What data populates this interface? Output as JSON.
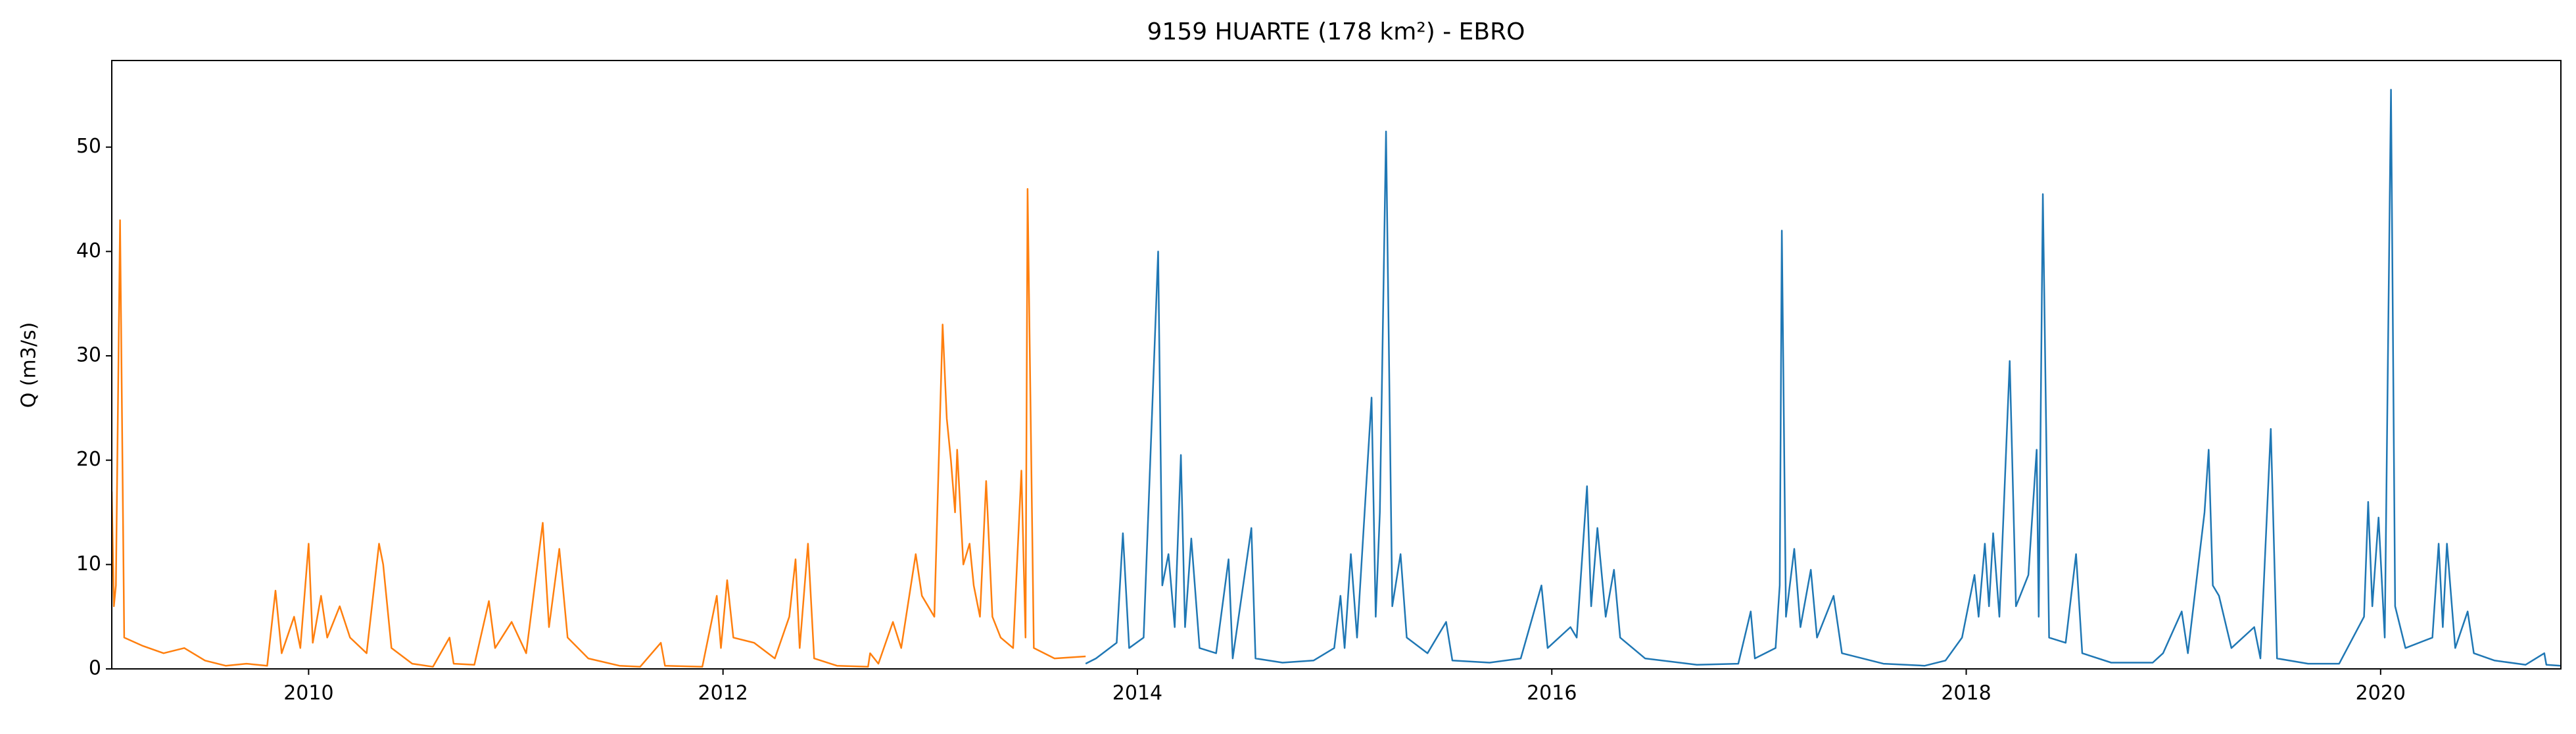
{
  "chart_data": {
    "type": "line",
    "title": "9159 HUARTE (178 km²) - EBRO",
    "ylabel": "Q (m3/s)",
    "xlim": [
      2009.05,
      2020.87
    ],
    "xticks": [
      2010,
      2012,
      2014,
      2016,
      2018,
      2020
    ],
    "ylim": [
      0,
      58.3
    ],
    "yticks": [
      0,
      10,
      20,
      30,
      40,
      50
    ],
    "grid": false,
    "series": [
      {
        "color": "#ff7f0e",
        "x": [
          2009.05,
          2009.06,
          2009.07,
          2009.09,
          2009.11,
          2009.2,
          2009.3,
          2009.4,
          2009.5,
          2009.6,
          2009.7,
          2009.8,
          2009.84,
          2009.87,
          2009.93,
          2009.96,
          2010.0,
          2010.02,
          2010.06,
          2010.09,
          2010.15,
          2010.2,
          2010.28,
          2010.34,
          2010.36,
          2010.4,
          2010.5,
          2010.6,
          2010.68,
          2010.7,
          2010.8,
          2010.87,
          2010.9,
          2010.98,
          2011.05,
          2011.13,
          2011.16,
          2011.21,
          2011.25,
          2011.35,
          2011.5,
          2011.6,
          2011.7,
          2011.72,
          2011.9,
          2011.97,
          2011.99,
          2012.02,
          2012.05,
          2012.15,
          2012.25,
          2012.32,
          2012.35,
          2012.37,
          2012.41,
          2012.44,
          2012.55,
          2012.7,
          2012.71,
          2012.75,
          2012.82,
          2012.86,
          2012.93,
          2012.96,
          2013.02,
          2013.06,
          2013.08,
          2013.1,
          2013.12,
          2013.13,
          2013.16,
          2013.19,
          2013.21,
          2013.24,
          2013.27,
          2013.3,
          2013.34,
          2013.4,
          2013.44,
          2013.46,
          2013.47,
          2013.5,
          2013.6,
          2013.75
        ],
        "values": [
          17,
          6,
          8,
          43,
          3,
          2.2,
          1.5,
          2,
          0.8,
          0.3,
          0.5,
          0.3,
          7.5,
          1.5,
          5,
          2,
          12,
          2.5,
          7,
          3,
          6,
          3,
          1.5,
          12,
          10,
          2,
          0.5,
          0.2,
          3,
          0.5,
          0.4,
          6.5,
          2,
          4.5,
          1.5,
          14,
          4,
          11.5,
          3,
          1,
          0.3,
          0.2,
          2.5,
          0.3,
          0.2,
          7,
          2,
          8.5,
          3,
          2.5,
          1,
          5,
          10.5,
          2,
          12,
          1,
          0.3,
          0.2,
          1.5,
          0.5,
          4.5,
          2,
          11,
          7,
          5,
          33,
          24,
          20,
          15,
          21,
          10,
          12,
          8,
          5,
          18,
          5,
          3,
          2,
          19,
          3,
          46,
          2,
          1,
          1.2
        ]
      },
      {
        "color": "#1f77b4",
        "x": [
          2013.75,
          2013.8,
          2013.9,
          2013.93,
          2013.96,
          2014.03,
          2014.1,
          2014.12,
          2014.15,
          2014.18,
          2014.21,
          2014.23,
          2014.26,
          2014.3,
          2014.38,
          2014.44,
          2014.46,
          2014.55,
          2014.57,
          2014.7,
          2014.85,
          2014.95,
          2014.98,
          2015.0,
          2015.03,
          2015.06,
          2015.13,
          2015.15,
          2015.17,
          2015.2,
          2015.23,
          2015.27,
          2015.3,
          2015.4,
          2015.49,
          2015.52,
          2015.7,
          2015.85,
          2015.95,
          2015.98,
          2016.09,
          2016.12,
          2016.17,
          2016.19,
          2016.22,
          2016.26,
          2016.3,
          2016.33,
          2016.45,
          2016.7,
          2016.9,
          2016.96,
          2016.98,
          2017.08,
          2017.1,
          2017.11,
          2017.13,
          2017.17,
          2017.2,
          2017.25,
          2017.28,
          2017.36,
          2017.4,
          2017.6,
          2017.8,
          2017.9,
          2017.98,
          2018.04,
          2018.06,
          2018.09,
          2018.11,
          2018.13,
          2018.16,
          2018.21,
          2018.24,
          2018.3,
          2018.34,
          2018.35,
          2018.37,
          2018.4,
          2018.48,
          2018.53,
          2018.56,
          2018.7,
          2018.9,
          2018.95,
          2019.04,
          2019.07,
          2019.15,
          2019.17,
          2019.19,
          2019.22,
          2019.28,
          2019.39,
          2019.42,
          2019.47,
          2019.5,
          2019.65,
          2019.8,
          2019.92,
          2019.94,
          2019.96,
          2019.99,
          2020.02,
          2020.05,
          2020.07,
          2020.12,
          2020.25,
          2020.28,
          2020.3,
          2020.32,
          2020.36,
          2020.42,
          2020.45,
          2020.55,
          2020.7,
          2020.79,
          2020.8,
          2020.87
        ],
        "values": [
          0.5,
          1,
          2.5,
          13,
          2,
          3,
          40,
          8,
          11,
          4,
          20.5,
          4,
          12.5,
          2,
          1.5,
          10.5,
          1,
          13.5,
          1,
          0.6,
          0.8,
          2,
          7,
          2,
          11,
          3,
          26,
          5,
          15,
          51.5,
          6,
          11,
          3,
          1.5,
          4.5,
          0.8,
          0.6,
          1,
          8,
          2,
          4,
          3,
          17.5,
          6,
          13.5,
          5,
          9.5,
          3,
          1,
          0.4,
          0.5,
          5.5,
          1,
          2,
          8,
          42,
          5,
          11.5,
          4,
          9.5,
          3,
          7,
          1.5,
          0.5,
          0.3,
          0.8,
          3,
          9,
          5,
          12,
          6,
          13,
          5,
          29.5,
          6,
          9,
          21,
          5,
          45.5,
          3,
          2.5,
          11,
          1.5,
          0.6,
          0.6,
          1.5,
          5.5,
          1.5,
          15,
          21,
          8,
          7,
          2,
          4,
          1,
          23,
          1,
          0.5,
          0.5,
          5,
          16,
          6,
          14.5,
          3,
          55.5,
          6,
          2,
          3,
          12,
          4,
          12,
          2,
          5.5,
          1.5,
          0.8,
          0.4,
          1.5,
          0.4,
          0.3
        ]
      }
    ]
  }
}
